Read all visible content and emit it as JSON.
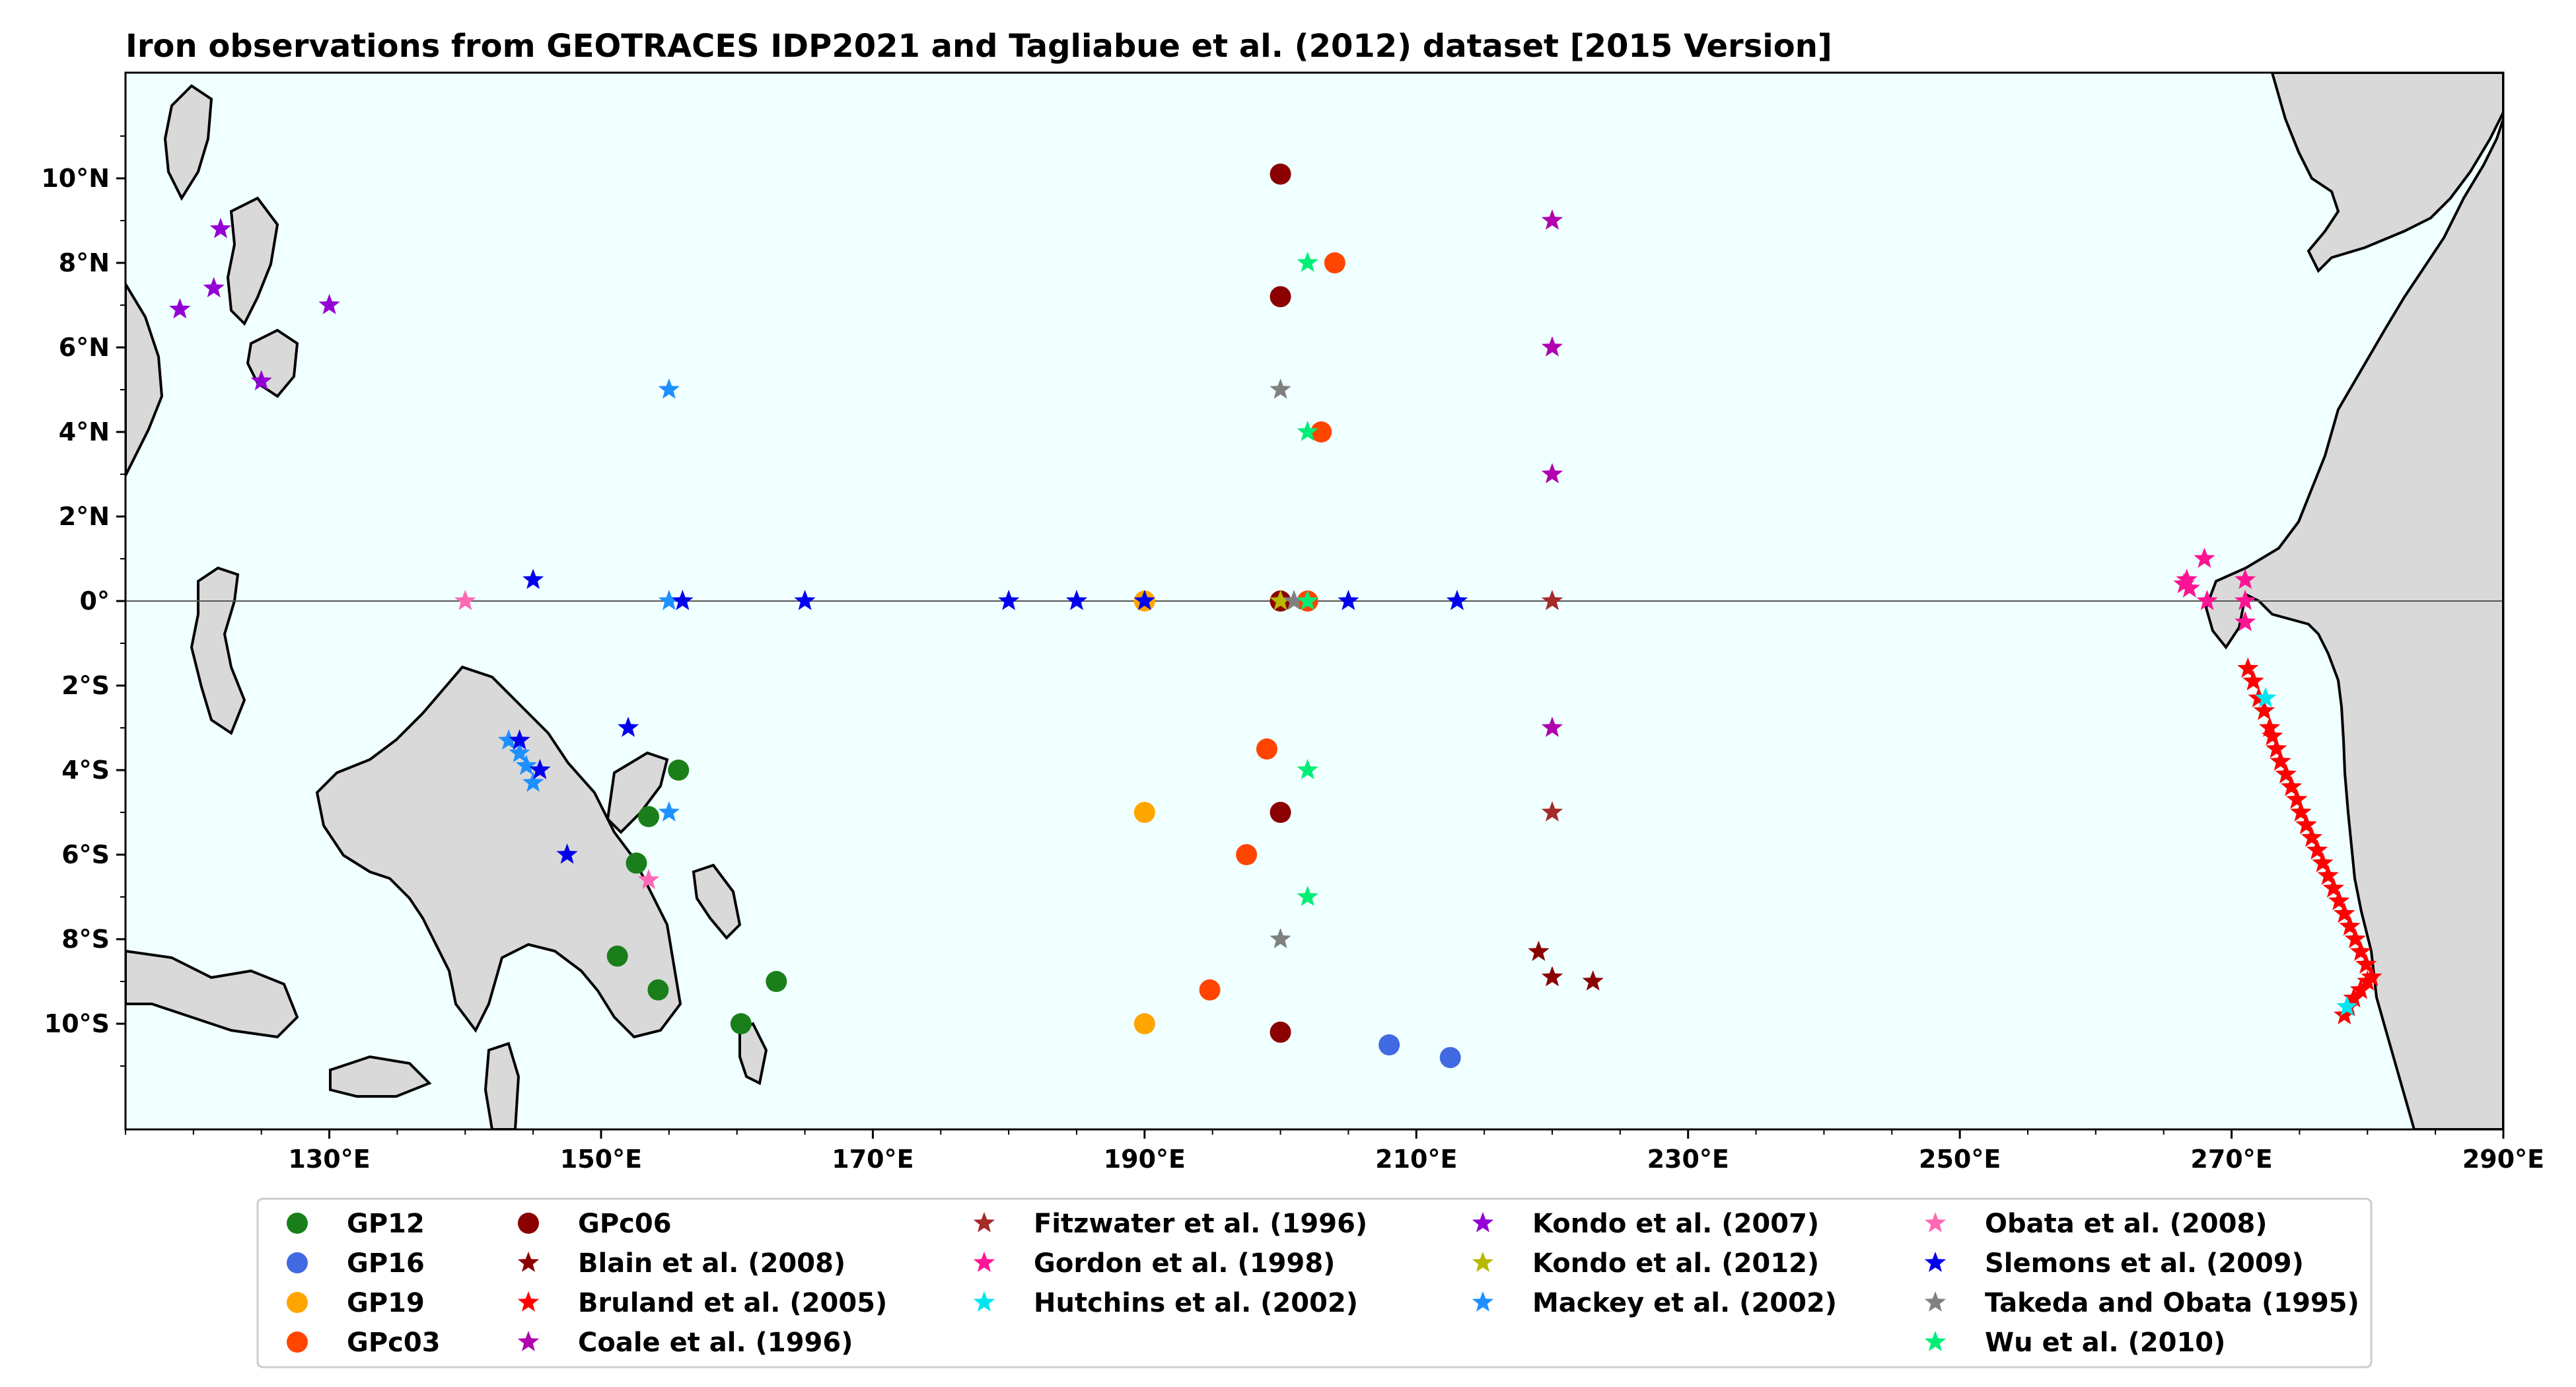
{
  "title": "Iron observations from GEOTRACES IDP2021 and Tagliabue et al. (2012) dataset [2015 Version]",
  "colors": {
    "ocean": "#f0ffff",
    "land": "#d9d9d9",
    "coast": "#000000",
    "equator_line": "#555555"
  },
  "chart_data": {
    "type": "scatter",
    "map_extent": {
      "lon": [
        115,
        290
      ],
      "lat": [
        -12.5,
        12.5
      ]
    },
    "x_ticks": [
      {
        "value": 130,
        "label": "130°E"
      },
      {
        "value": 150,
        "label": "150°E"
      },
      {
        "value": 170,
        "label": "170°E"
      },
      {
        "value": 190,
        "label": "190°E"
      },
      {
        "value": 210,
        "label": "210°E"
      },
      {
        "value": 230,
        "label": "230°E"
      },
      {
        "value": 250,
        "label": "250°E"
      },
      {
        "value": 270,
        "label": "270°E"
      },
      {
        "value": 290,
        "label": "290°E"
      }
    ],
    "y_ticks": [
      {
        "value": 10,
        "label": "10°N"
      },
      {
        "value": 8,
        "label": "8°N"
      },
      {
        "value": 6,
        "label": "6°N"
      },
      {
        "value": 4,
        "label": "4°N"
      },
      {
        "value": 2,
        "label": "2°N"
      },
      {
        "value": 0,
        "label": "0°"
      },
      {
        "value": -2,
        "label": "2°S"
      },
      {
        "value": -4,
        "label": "4°S"
      },
      {
        "value": -6,
        "label": "6°S"
      },
      {
        "value": -8,
        "label": "8°S"
      },
      {
        "value": -10,
        "label": "10°S"
      }
    ],
    "equator_line": true,
    "legend_position": "bottom",
    "series": [
      {
        "name": "GP12",
        "marker": "circle",
        "color": "#1a7f1a",
        "points": [
          [
            155.7,
            -4.0
          ],
          [
            153.5,
            -5.1
          ],
          [
            152.6,
            -6.2
          ],
          [
            151.2,
            -8.4
          ],
          [
            154.2,
            -9.2
          ],
          [
            160.3,
            -10.0
          ],
          [
            162.9,
            -9.0
          ]
        ]
      },
      {
        "name": "GP16",
        "marker": "circle",
        "color": "#4169e1",
        "points": [
          [
            208.0,
            -10.5
          ],
          [
            212.5,
            -10.8
          ]
        ]
      },
      {
        "name": "GP19",
        "marker": "circle",
        "color": "#ffa500",
        "points": [
          [
            190.0,
            0.0
          ],
          [
            190.0,
            -5.0
          ],
          [
            190.0,
            -10.0
          ]
        ]
      },
      {
        "name": "GPc03",
        "marker": "circle",
        "color": "#ff4500",
        "points": [
          [
            204.0,
            8.0
          ],
          [
            203.0,
            4.0
          ],
          [
            202.0,
            0.0
          ],
          [
            199.0,
            -3.5
          ],
          [
            197.5,
            -6.0
          ],
          [
            194.8,
            -9.2
          ]
        ]
      },
      {
        "name": "GPc06",
        "marker": "circle",
        "color": "#8b0000",
        "points": [
          [
            200.0,
            10.1
          ],
          [
            200.0,
            7.2
          ],
          [
            200.0,
            0.0
          ],
          [
            200.0,
            -5.0
          ],
          [
            200.0,
            -10.2
          ]
        ]
      },
      {
        "name": "Blain et al. (2008)",
        "marker": "star",
        "color": "#8b0000",
        "points": [
          [
            219.0,
            -8.3
          ],
          [
            220.0,
            -8.9
          ],
          [
            223.0,
            -9.0
          ]
        ]
      },
      {
        "name": "Bruland et al. (2005)",
        "marker": "star",
        "color": "#ff0000",
        "points": [
          [
            271.2,
            -1.6
          ],
          [
            271.6,
            -1.9
          ],
          [
            272.0,
            -2.3
          ],
          [
            272.4,
            -2.6
          ],
          [
            272.8,
            -3.0
          ],
          [
            273.0,
            -3.2
          ],
          [
            273.3,
            -3.5
          ],
          [
            273.6,
            -3.8
          ],
          [
            274.0,
            -4.1
          ],
          [
            274.4,
            -4.4
          ],
          [
            274.8,
            -4.7
          ],
          [
            275.1,
            -5.0
          ],
          [
            275.5,
            -5.3
          ],
          [
            275.9,
            -5.6
          ],
          [
            276.3,
            -5.9
          ],
          [
            276.7,
            -6.2
          ],
          [
            277.1,
            -6.5
          ],
          [
            277.5,
            -6.8
          ],
          [
            277.9,
            -7.1
          ],
          [
            278.3,
            -7.4
          ],
          [
            278.7,
            -7.7
          ],
          [
            279.1,
            -8.0
          ],
          [
            279.5,
            -8.3
          ],
          [
            279.9,
            -8.6
          ],
          [
            280.3,
            -8.9
          ],
          [
            280.0,
            -9.0
          ],
          [
            279.5,
            -9.2
          ],
          [
            279.0,
            -9.4
          ],
          [
            278.6,
            -9.6
          ],
          [
            278.3,
            -9.8
          ]
        ]
      },
      {
        "name": "Coale et al. (1996)",
        "marker": "star",
        "color": "#b000b0",
        "points": [
          [
            220.0,
            9.0
          ],
          [
            220.0,
            6.0
          ],
          [
            220.0,
            3.0
          ],
          [
            220.0,
            -3.0
          ]
        ]
      },
      {
        "name": "Fitzwater et al. (1996)",
        "marker": "star",
        "color": "#a52a2a",
        "points": [
          [
            220.0,
            0.0
          ],
          [
            220.0,
            -5.0
          ]
        ]
      },
      {
        "name": "Gordon et al. (1998)",
        "marker": "star",
        "color": "#ff1493",
        "points": [
          [
            266.5,
            0.4
          ],
          [
            266.9,
            0.3
          ],
          [
            268.0,
            1.0
          ],
          [
            268.2,
            0.0
          ],
          [
            271.0,
            0.5
          ],
          [
            271.0,
            0.0
          ],
          [
            271.0,
            -0.5
          ],
          [
            266.7,
            0.5
          ]
        ]
      },
      {
        "name": "Hutchins et al. (2002)",
        "marker": "star",
        "color": "#00e5ee",
        "points": [
          [
            272.5,
            -2.3
          ],
          [
            278.5,
            -9.6
          ]
        ]
      },
      {
        "name": "Kondo et al. (2007)",
        "marker": "star",
        "color": "#9400d3",
        "points": [
          [
            122.0,
            8.8
          ],
          [
            121.5,
            7.4
          ],
          [
            119.0,
            6.9
          ],
          [
            125.0,
            5.2
          ],
          [
            130.0,
            7.0
          ]
        ]
      },
      {
        "name": "Kondo et al. (2012)",
        "marker": "star",
        "color": "#b8b800",
        "points": [
          [
            200.0,
            0.0
          ]
        ]
      },
      {
        "name": "Mackey et al. (2002)",
        "marker": "star",
        "color": "#1e90ff",
        "points": [
          [
            155.0,
            5.0
          ],
          [
            155.0,
            0.0
          ],
          [
            143.2,
            -3.3
          ],
          [
            144.0,
            -3.6
          ],
          [
            144.5,
            -3.9
          ],
          [
            145.0,
            -4.3
          ],
          [
            155.0,
            -5.0
          ]
        ]
      },
      {
        "name": "Obata et al. (2008)",
        "marker": "star",
        "color": "#ff69b4",
        "points": [
          [
            140.0,
            0.0
          ],
          [
            153.5,
            -6.6
          ]
        ]
      },
      {
        "name": "Slemons et al. (2009)",
        "marker": "star",
        "color": "#0000ee",
        "points": [
          [
            145.0,
            0.5
          ],
          [
            156.0,
            0.0
          ],
          [
            165.0,
            0.0
          ],
          [
            180.0,
            0.0
          ],
          [
            185.0,
            0.0
          ],
          [
            190.0,
            0.0
          ],
          [
            205.0,
            0.0
          ],
          [
            213.0,
            0.0
          ],
          [
            152.0,
            -3.0
          ],
          [
            144.0,
            -3.3
          ],
          [
            145.5,
            -4.0
          ],
          [
            147.5,
            -6.0
          ]
        ]
      },
      {
        "name": "Takeda and Obata (1995)",
        "marker": "star",
        "color": "#808080",
        "points": [
          [
            200.0,
            5.0
          ],
          [
            201.0,
            0.0
          ],
          [
            200.0,
            -8.0
          ]
        ]
      },
      {
        "name": "Wu et al. (2010)",
        "marker": "star",
        "color": "#00ee76",
        "points": [
          [
            202.0,
            8.0
          ],
          [
            202.0,
            4.0
          ],
          [
            202.0,
            0.0
          ],
          [
            202.0,
            -4.0
          ],
          [
            202.0,
            -7.0
          ]
        ]
      }
    ]
  }
}
